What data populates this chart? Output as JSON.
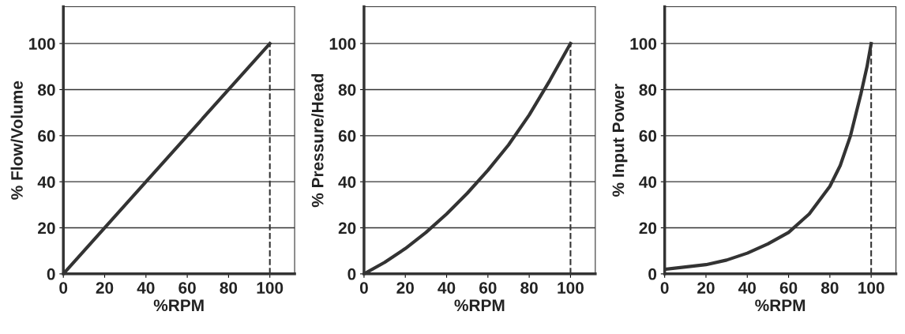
{
  "chart_data": [
    {
      "type": "line",
      "xlabel": "%RPM",
      "ylabel": "% Flow/Volume",
      "x": [
        0,
        100
      ],
      "values": [
        0,
        100
      ],
      "color": "#333333",
      "xlim": [
        0,
        112
      ],
      "ylim": [
        0,
        116
      ],
      "xticks": [
        0,
        20,
        40,
        60,
        80,
        100
      ],
      "yticks": [
        0,
        20,
        40,
        60,
        80,
        100
      ],
      "grid": "y",
      "ref_lines": [
        {
          "axis": "x",
          "value": 100,
          "color": "#333333",
          "line_style": "dashed"
        }
      ]
    },
    {
      "type": "line",
      "xlabel": "%RPM",
      "ylabel": "% Pressure/Head",
      "x": [
        0,
        10,
        20,
        30,
        40,
        50,
        60,
        70,
        80,
        90,
        100
      ],
      "values": [
        0,
        5,
        11,
        18,
        26,
        35,
        45,
        56,
        69,
        84,
        100
      ],
      "color": "#333333",
      "xlim": [
        0,
        112
      ],
      "ylim": [
        0,
        116
      ],
      "xticks": [
        0,
        20,
        40,
        60,
        80,
        100
      ],
      "yticks": [
        0,
        20,
        40,
        60,
        80,
        100
      ],
      "grid": "y",
      "ref_lines": [
        {
          "axis": "x",
          "value": 100,
          "color": "#333333",
          "line_style": "dashed"
        }
      ]
    },
    {
      "type": "line",
      "xlabel": "%RPM",
      "ylabel": "% Input Power",
      "x": [
        0,
        10,
        20,
        30,
        40,
        50,
        60,
        70,
        80,
        85,
        90,
        95,
        98,
        100
      ],
      "values": [
        2,
        3,
        4,
        6,
        9,
        13,
        18,
        26,
        38,
        47,
        60,
        78,
        90,
        100
      ],
      "color": "#333333",
      "xlim": [
        0,
        112
      ],
      "ylim": [
        0,
        116
      ],
      "xticks": [
        0,
        20,
        40,
        60,
        80,
        100
      ],
      "yticks": [
        0,
        20,
        40,
        60,
        80,
        100
      ],
      "grid": "y",
      "ref_lines": [
        {
          "axis": "x",
          "value": 100,
          "color": "#333333",
          "line_style": "dashed"
        }
      ]
    }
  ]
}
